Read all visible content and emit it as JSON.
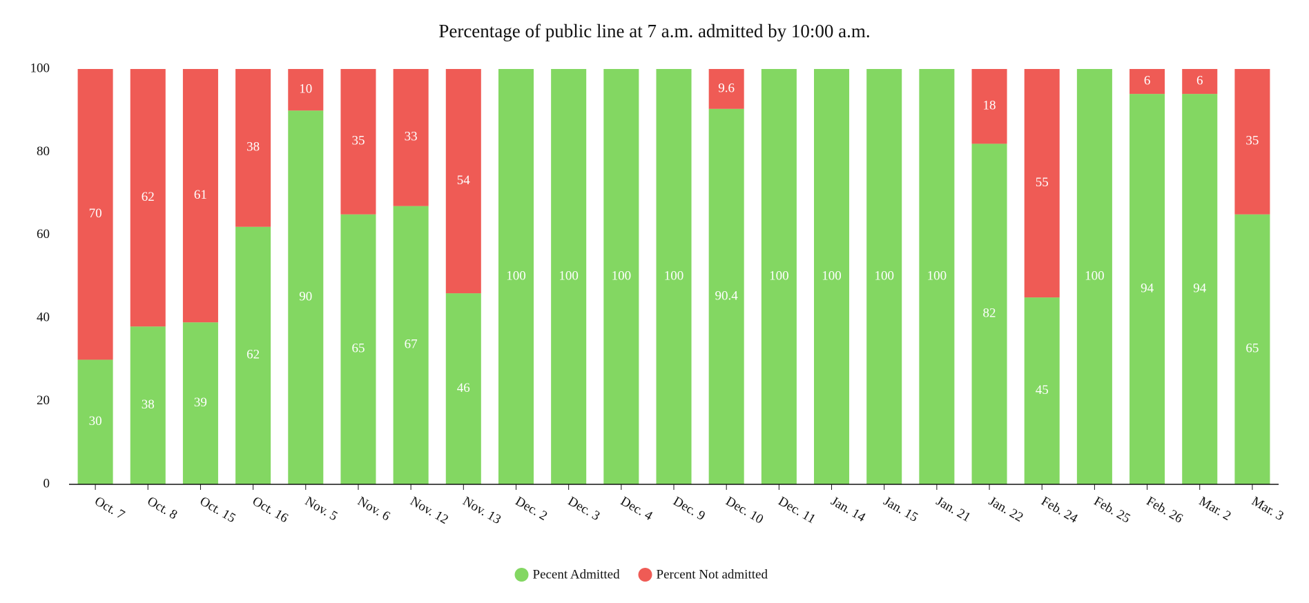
{
  "chart_data": {
    "type": "stacked_bar",
    "title": "Percentage of public line at 7 a.m. admitted by 10:00 a.m.",
    "categories": [
      "Oct. 7",
      "Oct. 8",
      "Oct. 15",
      "Oct. 16",
      "Nov. 5",
      "Nov. 6",
      "Nov. 12",
      "Nov. 13",
      "Dec. 2",
      "Dec. 3",
      "Dec. 4",
      "Dec. 9",
      "Dec. 10",
      "Dec. 11",
      "Jan. 14",
      "Jan. 15",
      "Jan. 21",
      "Jan. 22",
      "Feb. 24",
      "Feb. 25",
      "Feb. 26",
      "Mar. 2",
      "Mar. 3"
    ],
    "series": [
      {
        "name": "Pecent Admitted",
        "color": "#83d762",
        "values": [
          30,
          38,
          39,
          62,
          90,
          65,
          67,
          46,
          100,
          100,
          100,
          100,
          90.4,
          100,
          100,
          100,
          100,
          82,
          45,
          100,
          94,
          94,
          65
        ]
      },
      {
        "name": "Percent Not admitted",
        "color": "#ef5b55",
        "values": [
          70,
          62,
          61,
          38,
          10,
          35,
          33,
          54,
          null,
          null,
          null,
          null,
          9.6,
          null,
          null,
          null,
          null,
          18,
          55,
          null,
          6,
          6,
          35
        ]
      }
    ],
    "ylim": [
      0,
      100
    ],
    "yticks": [
      0,
      20,
      40,
      60,
      80,
      100
    ],
    "legend": "bottom"
  }
}
